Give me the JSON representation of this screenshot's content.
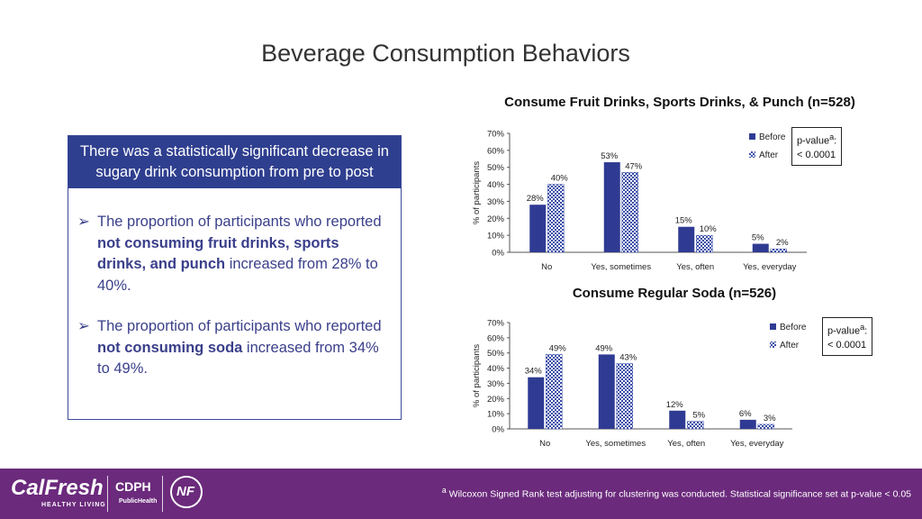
{
  "page": {
    "title": "Beverage Consumption Behaviors"
  },
  "summary": {
    "header": "There was a statistically significant decrease in sugary drink consumption from pre to post",
    "bullets": [
      {
        "pre": "The proportion of participants who reported ",
        "bold": "not consuming fruit drinks, sports drinks, and punch",
        "post": " increased from 28% to 40%."
      },
      {
        "pre": "The proportion of participants who reported ",
        "bold": "not consuming soda",
        "post": " increased from 34% to 49%."
      }
    ]
  },
  "colors": {
    "before": "#2f3b93",
    "after_pattern": "#3b4fa8",
    "header_bg": "#2f3f8f",
    "footer_bg": "#6b2a7c"
  },
  "chart_data": [
    {
      "type": "bar",
      "title": "Consume Fruit Drinks, Sports Drinks, & Punch (n=528)",
      "xlabel": "",
      "ylabel": "% of participants",
      "ylim": [
        0,
        70
      ],
      "yticks": [
        "0%",
        "10%",
        "20%",
        "30%",
        "40%",
        "50%",
        "60%",
        "70%"
      ],
      "categories": [
        "No",
        "Yes, sometimes",
        "Yes, often",
        "Yes, everyday"
      ],
      "series": [
        {
          "name": "Before",
          "values": [
            28,
            53,
            15,
            5
          ],
          "labels": [
            "28%",
            "53%",
            "15%",
            "5%"
          ]
        },
        {
          "name": "After",
          "values": [
            40,
            47,
            10,
            2
          ],
          "labels": [
            "40%",
            "47%",
            "10%",
            "2%"
          ]
        }
      ],
      "legend": "top-right",
      "pvalue_label": "p-value",
      "pvalue_sup": "a",
      "pvalue_colon": ":",
      "pvalue_text": "< 0.0001"
    },
    {
      "type": "bar",
      "title": "Consume Regular Soda (n=526)",
      "xlabel": "",
      "ylabel": "% of participants",
      "ylim": [
        0,
        70
      ],
      "yticks": [
        "0%",
        "10%",
        "20%",
        "30%",
        "40%",
        "50%",
        "60%",
        "70%"
      ],
      "categories": [
        "No",
        "Yes, sometimes",
        "Yes, often",
        "Yes, everyday"
      ],
      "series": [
        {
          "name": "Before",
          "values": [
            34,
            49,
            12,
            6
          ],
          "labels": [
            "34%",
            "49%",
            "12%",
            "6%"
          ]
        },
        {
          "name": "After",
          "values": [
            49,
            43,
            5,
            3
          ],
          "labels": [
            "49%",
            "43%",
            "5%",
            "3%"
          ]
        }
      ],
      "legend": "top-right",
      "pvalue_label": "p-value",
      "pvalue_sup": "a",
      "pvalue_colon": ":",
      "pvalue_text": "< 0.0001"
    }
  ],
  "footer": {
    "note_sup": "a",
    "note": " Wilcoxon Signed Rank test adjusting for clustering was conducted. Statistical significance set at p-value < 0.05",
    "logo_calfresh": "CalFresh",
    "logo_calfresh_sub": "HEALTHY LIVING",
    "logo_cdph": "CDPH",
    "logo_cdph_sub": "PublicHealth",
    "logo_nf": "NF"
  }
}
